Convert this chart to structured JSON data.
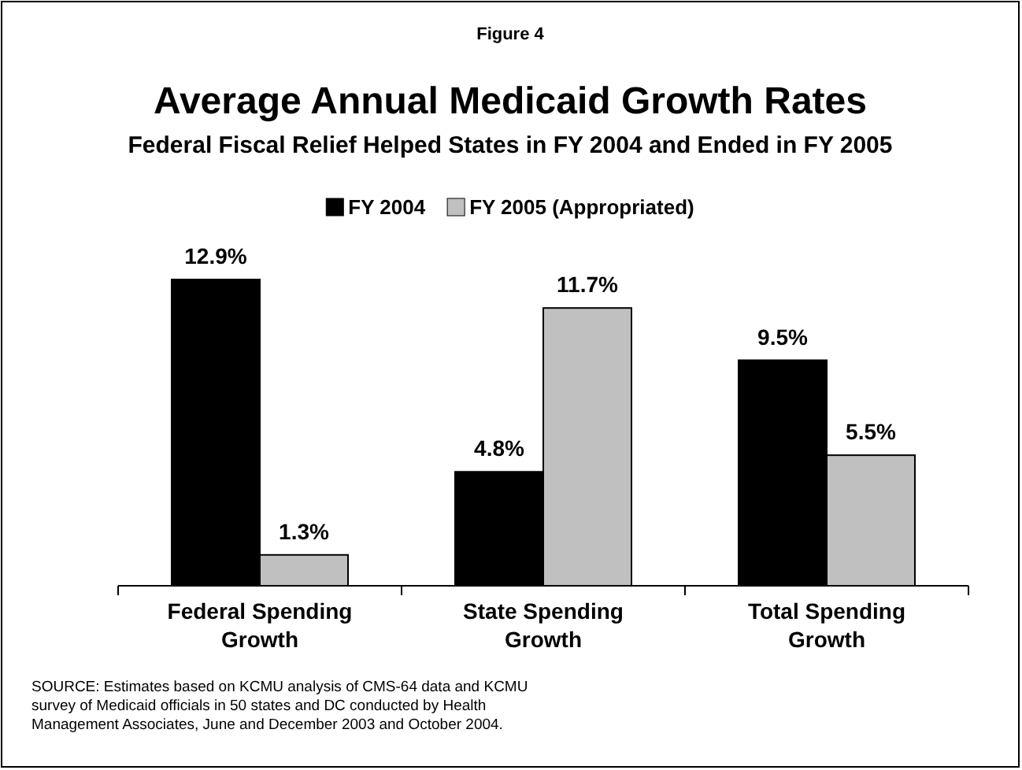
{
  "chart_data": {
    "type": "bar",
    "title": "Average Annual Medicaid Growth Rates",
    "subtitle": "Federal Fiscal Relief Helped States in FY 2004 and Ended in FY 2005",
    "annotations": [
      "Figure 4",
      "SOURCE: Estimates based on KCMU analysis of CMS-64 data and KCMU survey of Medicaid officials in 50 states and DC conducted by Health Management Associates, June and December 2003 and October 2004."
    ],
    "categories": [
      "Federal Spending Growth",
      "State Spending Growth",
      "Total Spending Growth"
    ],
    "series": [
      {
        "name": "FY 2004",
        "color": "#000000",
        "values": [
          12.9,
          4.8,
          9.5
        ],
        "value_labels": [
          "12.9%",
          "4.8%",
          "9.5%"
        ]
      },
      {
        "name": "FY 2005 (Appropriated)",
        "color": "#c0c0c0",
        "values": [
          1.3,
          11.7,
          5.5
        ],
        "value_labels": [
          "1.3%",
          "11.7%",
          "5.5%"
        ]
      }
    ],
    "tick_labels": "x",
    "legend": "top"
  }
}
